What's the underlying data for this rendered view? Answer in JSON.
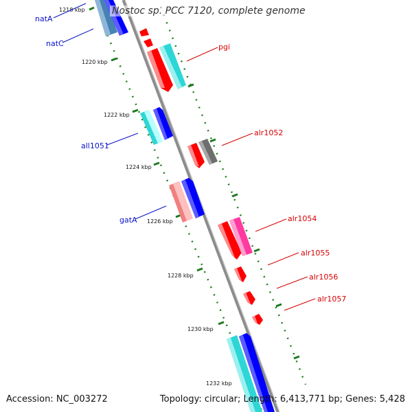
{
  "title": "Nostoc sp. PCC 7120, complete genome",
  "footer": {
    "accession": "Accession: NC_003272",
    "summary": "Topology: circular; Length: 6,413,771 bp; Genes: 5,428"
  },
  "ticks": [
    "1218 kbp",
    "1220 kbp",
    "1222 kbp",
    "1224 kbp",
    "1226 kbp",
    "1228 kbp",
    "1230 kbp",
    "1232 kbp"
  ],
  "left_labels": [
    "natA",
    "natC",
    "all1051",
    "gatA"
  ],
  "right_labels": [
    "pgi",
    "alr1052",
    "alr1054",
    "alr1055",
    "alr1056",
    "alr1057"
  ],
  "colors": {
    "backbone": "#8c8c8c",
    "label_left": "#0a12c8",
    "label_right": "#d40000",
    "tick": "#1f7a1f",
    "red": "#ff0000",
    "cyan": "#2ed6d6",
    "blue": "#0000ff",
    "steelblue": "#4682b4",
    "pink": "#ff3aa0",
    "salmon": "#f08080",
    "gray": "#6e6e6e"
  }
}
